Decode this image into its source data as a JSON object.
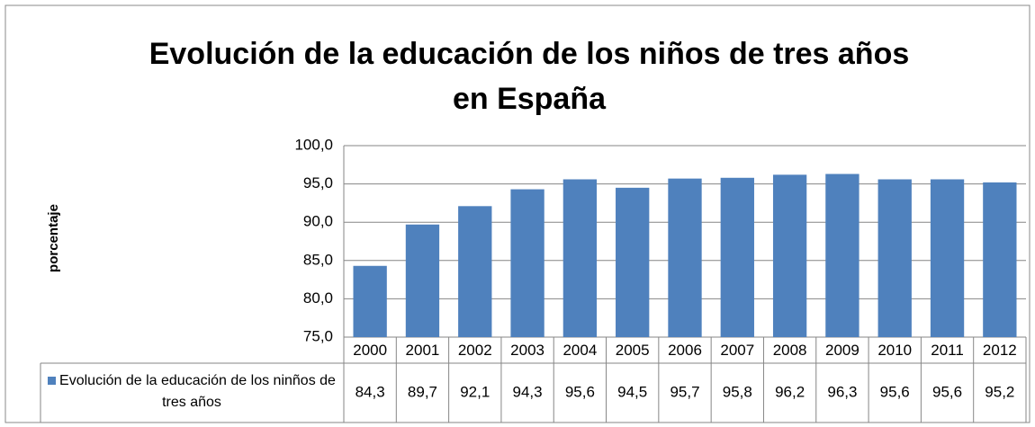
{
  "chart_data": {
    "type": "bar",
    "title": "Evolución de la educación de los niños de tres años",
    "title_line2": "en España",
    "y_label": "porcentaje",
    "categories": [
      "2000",
      "2001",
      "2002",
      "2003",
      "2004",
      "2005",
      "2006",
      "2007",
      "2008",
      "2009",
      "2010",
      "2011",
      "2012"
    ],
    "series": [
      {
        "name": "Evolución de la educación de los ninños de tres años",
        "color": "#4f81bd",
        "values": [
          84.3,
          89.7,
          92.1,
          94.3,
          95.6,
          94.5,
          95.7,
          95.8,
          96.2,
          96.3,
          95.6,
          95.6,
          95.2
        ],
        "value_labels": [
          "84,3",
          "89,7",
          "92,1",
          "94,3",
          "95,6",
          "94,5",
          "95,7",
          "95,8",
          "96,2",
          "96,3",
          "95,6",
          "95,6",
          "95,2"
        ]
      }
    ],
    "ylim": [
      75,
      100
    ],
    "yticks": [
      {
        "value": 75,
        "label": "75,0"
      },
      {
        "value": 80,
        "label": "80,0"
      },
      {
        "value": 85,
        "label": "85,0"
      },
      {
        "value": 90,
        "label": "90,0"
      },
      {
        "value": 95,
        "label": "95,0"
      },
      {
        "value": 100,
        "label": "100,0"
      }
    ],
    "grid": true
  }
}
